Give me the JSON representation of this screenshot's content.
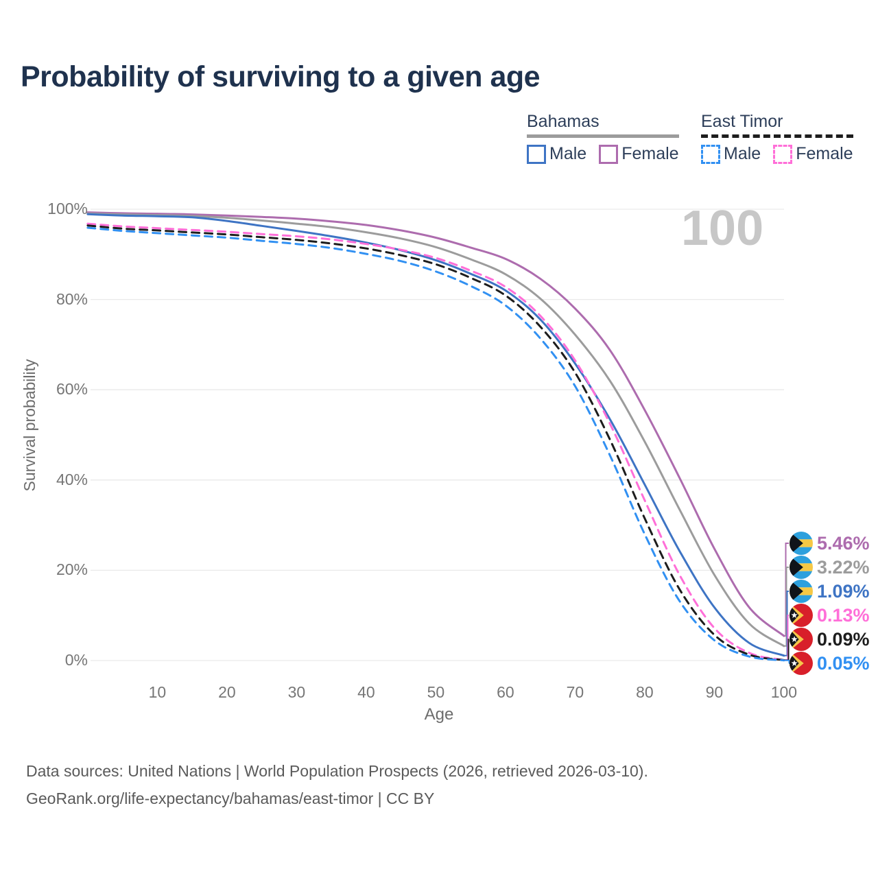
{
  "header": {
    "title": "Probability of surviving to a given age"
  },
  "watermark": "100",
  "legend": {
    "groups": [
      {
        "country": "Bahamas",
        "line_style": "solid",
        "line_color": "#9c9c9c",
        "items": [
          {
            "label": "Male",
            "color": "#3e74c4"
          },
          {
            "label": "Female",
            "color": "#ad6cae"
          }
        ]
      },
      {
        "country": "East Timor",
        "line_style": "dashed",
        "line_color": "#1d1d1d",
        "items": [
          {
            "label": "Male",
            "color": "#3190f2"
          },
          {
            "label": "Female",
            "color": "#ff6fd8"
          }
        ]
      }
    ]
  },
  "chart_data": {
    "type": "line",
    "title": "Probability of surviving to a given age",
    "xlabel": "Age",
    "ylabel": "Survival probability",
    "xlim": [
      0,
      100
    ],
    "ylim": [
      0,
      100
    ],
    "grid": "horizontal",
    "x_tick_values": [
      10,
      20,
      30,
      40,
      50,
      60,
      70,
      80,
      90,
      100
    ],
    "x_tick_labels": [
      "10",
      "20",
      "30",
      "40",
      "50",
      "60",
      "70",
      "80",
      "90",
      "100"
    ],
    "y_tick_values": [
      0,
      20,
      40,
      60,
      80,
      100
    ],
    "y_tick_labels": [
      "0%",
      "20%",
      "40%",
      "60%",
      "80%",
      "100%"
    ],
    "x": [
      0,
      5,
      10,
      15,
      20,
      25,
      30,
      35,
      40,
      45,
      50,
      55,
      60,
      65,
      70,
      75,
      80,
      85,
      90,
      95,
      100
    ],
    "series": [
      {
        "name": "Bahamas Female",
        "country": "Bahamas",
        "group": "Female",
        "color": "#ad6cae",
        "dashed": false,
        "flag": "bahamas",
        "end_label": "5.46%",
        "values": [
          99.3,
          99.1,
          99.0,
          98.85,
          98.6,
          98.3,
          97.9,
          97.3,
          96.5,
          95.3,
          93.7,
          91.5,
          89.0,
          84.6,
          78.0,
          68.8,
          55.5,
          40.5,
          24.8,
          11.8,
          5.46
        ]
      },
      {
        "name": "Bahamas Total",
        "country": "Bahamas",
        "group": "Total",
        "color": "#9c9c9c",
        "dashed": false,
        "flag": "bahamas",
        "end_label": "3.22%",
        "values": [
          99.05,
          98.85,
          98.7,
          98.5,
          98.1,
          97.5,
          96.8,
          96.0,
          94.9,
          93.5,
          91.6,
          88.9,
          85.6,
          80.2,
          72.2,
          62.0,
          48.5,
          33.5,
          19.0,
          8.2,
          3.22
        ]
      },
      {
        "name": "Bahamas Male",
        "country": "Bahamas",
        "group": "Male",
        "color": "#3e74c4",
        "dashed": false,
        "flag": "bahamas",
        "end_label": "1.09%",
        "values": [
          98.9,
          98.6,
          98.45,
          98.2,
          97.4,
          96.3,
          95.2,
          94.0,
          92.6,
          90.9,
          88.7,
          85.7,
          82.0,
          75.6,
          65.8,
          53.5,
          39.0,
          24.3,
          11.8,
          3.9,
          1.09
        ]
      },
      {
        "name": "East Timor Female",
        "country": "East Timor",
        "group": "Female",
        "color": "#ff6fd8",
        "dashed": true,
        "flag": "east-timor",
        "end_label": "0.13%",
        "values": [
          96.8,
          96.2,
          95.8,
          95.4,
          95.0,
          94.5,
          94.0,
          93.3,
          92.3,
          91.0,
          89.2,
          86.4,
          82.8,
          76.4,
          66.5,
          52.5,
          35.5,
          19.0,
          7.2,
          1.7,
          0.13
        ]
      },
      {
        "name": "East Timor Total",
        "country": "East Timor",
        "group": "Total",
        "color": "#1d1d1d",
        "dashed": true,
        "flag": "east-timor",
        "end_label": "0.09%",
        "values": [
          96.4,
          95.7,
          95.3,
          94.85,
          94.4,
          93.8,
          93.2,
          92.4,
          91.3,
          89.8,
          87.8,
          84.8,
          80.9,
          74.0,
          63.8,
          49.0,
          31.5,
          15.8,
          5.7,
          1.3,
          0.09
        ]
      },
      {
        "name": "East Timor Male",
        "country": "East Timor",
        "group": "Male",
        "color": "#3190f2",
        "dashed": true,
        "flag": "east-timor",
        "end_label": "0.05%",
        "values": [
          95.9,
          95.2,
          94.7,
          94.2,
          93.7,
          93.0,
          92.3,
          91.4,
          90.1,
          88.5,
          86.2,
          83.0,
          78.7,
          71.4,
          60.8,
          45.5,
          28.0,
          13.2,
          4.5,
          0.9,
          0.05
        ]
      }
    ]
  },
  "footer": {
    "line1": "Data sources: United Nations | World Population Prospects (2026, retrieved 2026-03-10).",
    "line2": "GeoRank.org/life-expectancy/bahamas/east-timor | CC BY"
  }
}
